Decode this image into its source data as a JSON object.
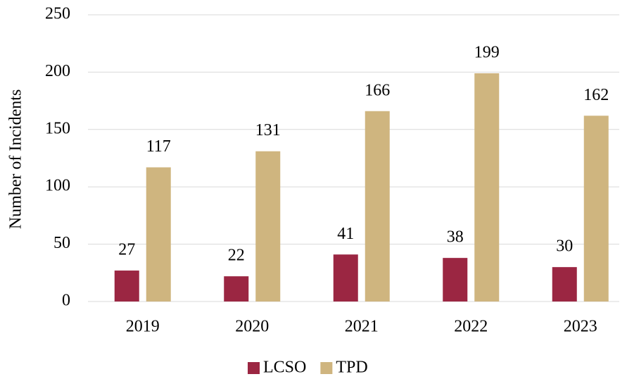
{
  "chart_data": {
    "type": "bar",
    "y_label": "Number of Incidents",
    "categories": [
      "2019",
      "2020",
      "2021",
      "2022",
      "2023"
    ],
    "series": [
      {
        "name": "LCSO",
        "color": "#9b2642",
        "values": [
          27,
          22,
          41,
          38,
          30
        ]
      },
      {
        "name": "TPD",
        "color": "#cfb57f",
        "values": [
          117,
          131,
          166,
          199,
          162
        ]
      }
    ],
    "ylim": [
      0,
      250
    ],
    "yticks": [
      0,
      50,
      100,
      150,
      200,
      250
    ],
    "grid": true,
    "legend": "bottom"
  }
}
